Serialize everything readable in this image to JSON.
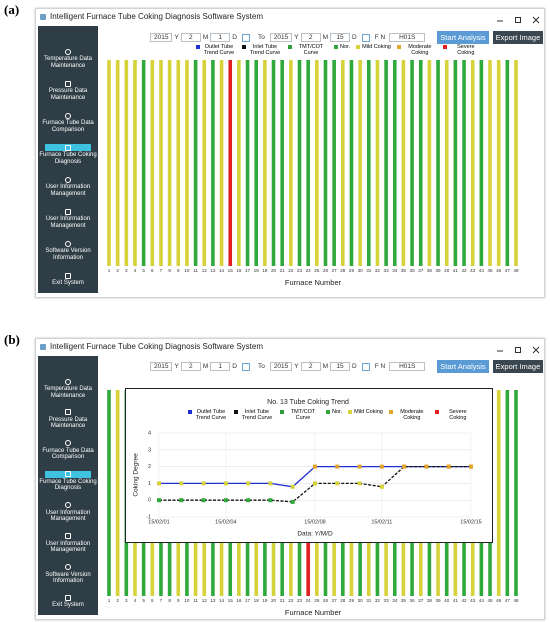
{
  "figure_labels": [
    "(a)",
    "(b)"
  ],
  "window": {
    "title": "Intelligent Furnace Tube Coking Diagnosis Software System",
    "menu": [
      "Temperature Data Maintenance",
      "Pressure Data Maintenance",
      "Furnace Tube Data Comparison",
      "Furnace Tube Coking Diagnosis",
      "User Information Management",
      "User Information Management",
      "Software Version Information",
      "Exit System"
    ],
    "toolbar": {
      "from": [
        "2015",
        "Y",
        "2",
        "M",
        "1",
        "D"
      ],
      "to_label": "To",
      "to": [
        "2015",
        "Y",
        "2",
        "M",
        "15",
        "D"
      ],
      "fn_label": "F N",
      "fn_value": "H01S",
      "buttons": [
        "Start Analysis",
        "Export Image"
      ]
    }
  },
  "legend": [
    {
      "name": "Outlet Tube Trend Curve",
      "color": "#1f2fd0"
    },
    {
      "name": "Inlet Tube Trend Curve",
      "color": "#111111"
    },
    {
      "name": "TMT/COT Curve",
      "color": "#2e9e3a"
    },
    {
      "name": "Nor.",
      "color": "#2fa83c"
    },
    {
      "name": "Mild Coking",
      "color": "#d6d23a"
    },
    {
      "name": "Moderate Coking",
      "color": "#e0a42a"
    },
    {
      "name": "Severe Coking",
      "color": "#e02020"
    }
  ],
  "furnace_tubes": {
    "x_label": "Furnace Number",
    "tubes": [
      1,
      2,
      3,
      4,
      5,
      6,
      7,
      8,
      9,
      10,
      11,
      12,
      13,
      14,
      15,
      16,
      17,
      18,
      19,
      20,
      21,
      22,
      23,
      24,
      25,
      26,
      27,
      28,
      29,
      30,
      31,
      32,
      33,
      34,
      35,
      36,
      37,
      38,
      39,
      40,
      41,
      42,
      43,
      44,
      45,
      46,
      47,
      48
    ]
  },
  "panels": [
    {
      "status": [
        "Mild Coking",
        "Mild Coking",
        "Mild Coking",
        "Mild Coking",
        "Nor.",
        "Mild Coking",
        "Mild Coking",
        "Mild Coking",
        "Mild Coking",
        "Mild Coking",
        "Nor.",
        "Mild Coking",
        "Nor.",
        "Mild Coking",
        "Severe Coking",
        "Mild Coking",
        "Nor.",
        "Nor.",
        "Mild Coking",
        "Nor.",
        "Nor.",
        "Mild Coking",
        "Nor.",
        "Nor.",
        "Mild Coking",
        "Nor.",
        "Nor.",
        "Mild Coking",
        "Nor.",
        "Mild Coking",
        "Nor.",
        "Mild Coking",
        "Nor.",
        "Nor.",
        "Mild Coking",
        "Nor.",
        "Nor.",
        "Mild Coking",
        "Nor.",
        "Mild Coking",
        "Nor.",
        "Nor.",
        "Mild Coking",
        "Nor.",
        "Mild Coking",
        "Mild Coking",
        "Nor.",
        "Mild Coking"
      ]
    },
    {
      "status": [
        "Nor.",
        "Mild Coking",
        "Nor.",
        "Mild Coking",
        "Nor.",
        "Mild Coking",
        "Nor.",
        "Nor.",
        "Mild Coking",
        "Nor.",
        "Mild Coking",
        "Mild Coking",
        "Nor.",
        "Mild Coking",
        "Nor.",
        "Mild Coking",
        "Nor.",
        "Mild Coking",
        "Nor.",
        "Mild Coking",
        "Nor.",
        "Mild Coking",
        "Nor.",
        "Severe Coking",
        "Mild Coking",
        "Nor.",
        "Mild Coking",
        "Nor.",
        "Mild Coking",
        "Nor.",
        "Mild Coking",
        "Nor.",
        "Mild Coking",
        "Nor.",
        "Mild Coking",
        "Nor.",
        "Mild Coking",
        "Nor.",
        "Mild Coking",
        "Nor.",
        "Mild Coking",
        "Nor.",
        "Mild Coking",
        "Nor.",
        "Nor.",
        "Mild Coking",
        "Nor.",
        "Nor."
      ]
    }
  ],
  "chart_data": {
    "type": "line",
    "title": "No. 13 Tube Coking Trend",
    "x_label": "Data: Y/M/D",
    "y_label": "Coking Degree",
    "categories": [
      "15/02/01",
      null,
      null,
      "15/02/04",
      null,
      null,
      null,
      "15/02/08",
      null,
      null,
      "15/02/11",
      null,
      null,
      null,
      "15/02/15"
    ],
    "ylim": [
      -1,
      4
    ],
    "yticks": [
      -1,
      0,
      1,
      2,
      3,
      4
    ],
    "grid": true,
    "series": [
      {
        "name": "Outlet Tube Trend Curve",
        "color": "#1f2fd0",
        "values": [
          1,
          1,
          1,
          1,
          1,
          1,
          0.8,
          2,
          2,
          2,
          2,
          2,
          2,
          2,
          2
        ]
      },
      {
        "name": "Inlet Tube Trend Curve",
        "color": "#111111",
        "dash": true,
        "values": [
          0,
          0,
          0,
          0,
          0,
          0,
          -0.1,
          1,
          1,
          1,
          0.8,
          2,
          2,
          2,
          2
        ]
      }
    ]
  }
}
